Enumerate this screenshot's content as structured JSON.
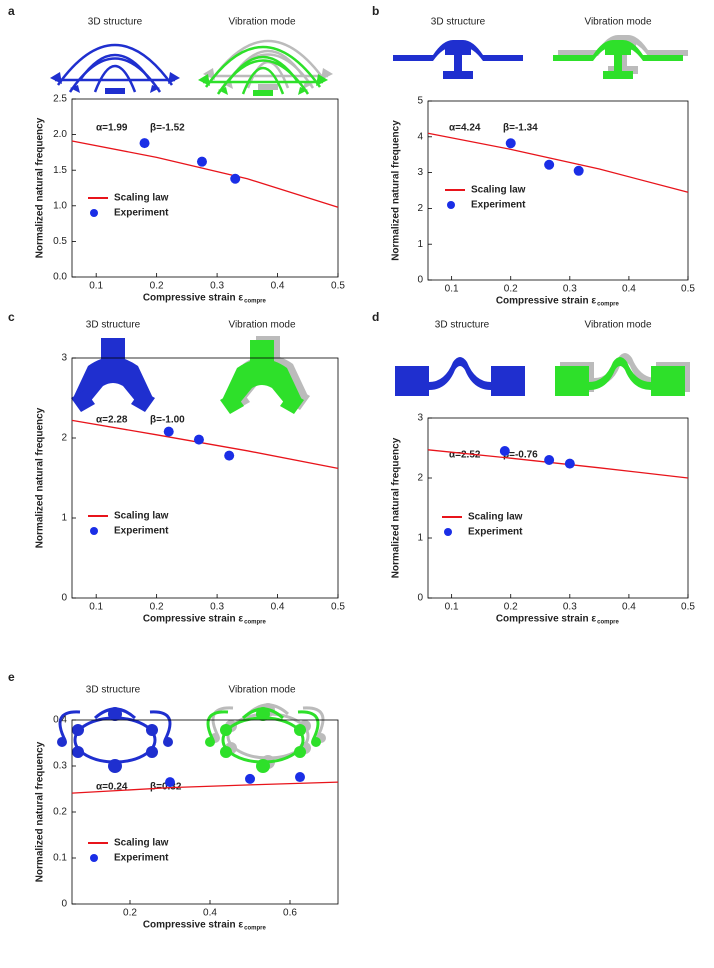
{
  "chart_data": [
    {
      "type": "line",
      "label": "a",
      "headers": [
        "3D structure",
        "Vibration mode"
      ],
      "annotations": [
        "α=1.99",
        "β=-1.52"
      ],
      "xlabel": "Compressive strain ε",
      "xlabel_subscript": "compre",
      "ylabel": "Normalized natural frequency",
      "xlim": [
        0.06,
        0.5
      ],
      "xticks": [
        0.1,
        0.2,
        0.3,
        0.4,
        0.5
      ],
      "ylim": [
        0,
        2.5
      ],
      "yticks": [
        {
          "value": 0,
          "label": "0.0"
        },
        0.5,
        {
          "value": 1,
          "label": "1.0"
        },
        1.5,
        {
          "value": 2,
          "label": "2.0"
        },
        2.5
      ],
      "series": [
        {
          "name": "Scaling law",
          "type": "line",
          "color": "#e8141b",
          "x": [
            0.06,
            0.2,
            0.35,
            0.5
          ],
          "values": [
            1.91,
            1.68,
            1.38,
            0.98
          ]
        },
        {
          "name": "Experiment",
          "type": "scatter",
          "color": "#1a2ee6",
          "x": [
            0.18,
            0.275,
            0.33
          ],
          "values": [
            1.88,
            1.62,
            1.38
          ]
        }
      ]
    },
    {
      "type": "line",
      "label": "b",
      "headers": [
        "3D structure",
        "Vibration mode"
      ],
      "annotations": [
        "α=4.24",
        "β=-1.34"
      ],
      "xlabel": "Compressive strain ε",
      "xlabel_subscript": "compre",
      "ylabel": "Normalized natural frequency",
      "xlim": [
        0.06,
        0.5
      ],
      "xticks": [
        0.1,
        0.2,
        0.3,
        0.4,
        0.5
      ],
      "ylim": [
        0,
        5
      ],
      "yticks": [
        0,
        1,
        2,
        3,
        4,
        5
      ],
      "series": [
        {
          "name": "Scaling law",
          "type": "line",
          "color": "#e8141b",
          "x": [
            0.06,
            0.2,
            0.35,
            0.5
          ],
          "values": [
            4.1,
            3.65,
            3.1,
            2.45
          ]
        },
        {
          "name": "Experiment",
          "type": "scatter",
          "color": "#1a2ee6",
          "x": [
            0.2,
            0.265,
            0.315
          ],
          "values": [
            3.82,
            3.22,
            3.05
          ]
        }
      ]
    },
    {
      "type": "line",
      "label": "c",
      "headers": [
        "3D structure",
        "Vibration mode"
      ],
      "annotations": [
        "α=2.28",
        "β=-1.00"
      ],
      "xlabel": "Compressive strain ε",
      "xlabel_subscript": "compre",
      "ylabel": "Normalized natural frequency",
      "xlim": [
        0.06,
        0.5
      ],
      "xticks": [
        0.1,
        0.2,
        0.3,
        0.4,
        0.5
      ],
      "ylim": [
        0,
        3
      ],
      "yticks": [
        0,
        1,
        2,
        3
      ],
      "series": [
        {
          "name": "Scaling law",
          "type": "line",
          "color": "#e8141b",
          "x": [
            0.06,
            0.2,
            0.35,
            0.5
          ],
          "values": [
            2.22,
            2.04,
            1.84,
            1.62
          ]
        },
        {
          "name": "Experiment",
          "type": "scatter",
          "color": "#1a2ee6",
          "x": [
            0.22,
            0.27,
            0.32
          ],
          "values": [
            2.08,
            1.98,
            1.78
          ]
        }
      ]
    },
    {
      "type": "line",
      "label": "d",
      "headers": [
        "3D structure",
        "Vibration mode"
      ],
      "annotations": [
        "α=2.52",
        "β=-0.76"
      ],
      "xlabel": "Compressive strain ε",
      "xlabel_subscript": "compre",
      "ylabel": "Normalized natural frequency",
      "xlim": [
        0.06,
        0.5
      ],
      "xticks": [
        0.1,
        0.2,
        0.3,
        0.4,
        0.5
      ],
      "ylim": [
        0,
        3
      ],
      "yticks": [
        0,
        1,
        2,
        3
      ],
      "series": [
        {
          "name": "Scaling law",
          "type": "line",
          "color": "#e8141b",
          "x": [
            0.06,
            0.2,
            0.35,
            0.5
          ],
          "values": [
            2.47,
            2.33,
            2.17,
            2.0
          ]
        },
        {
          "name": "Experiment",
          "type": "scatter",
          "color": "#1a2ee6",
          "x": [
            0.19,
            0.265,
            0.3
          ],
          "values": [
            2.45,
            2.3,
            2.24
          ]
        }
      ]
    },
    {
      "type": "line",
      "label": "e",
      "headers": [
        "3D structure",
        "Vibration mode"
      ],
      "annotations": [
        "α=0.24",
        "β=0.32"
      ],
      "xlabel": "Compressive strain ε",
      "xlabel_subscript": "compre",
      "ylabel": "Normalized natural frequency",
      "xlim": [
        0.055,
        0.72
      ],
      "xticks": [
        0.2,
        0.4,
        0.6
      ],
      "ylim": [
        0,
        0.4
      ],
      "yticks": [
        0,
        0.1,
        0.2,
        0.3,
        0.4
      ],
      "series": [
        {
          "name": "Scaling law",
          "type": "line",
          "color": "#e8141b",
          "x": [
            0.055,
            0.3,
            0.5,
            0.72
          ],
          "values": [
            0.241,
            0.253,
            0.259,
            0.265
          ]
        },
        {
          "name": "Experiment",
          "type": "scatter",
          "color": "#1a2ee6",
          "x": [
            0.3,
            0.5,
            0.625
          ],
          "values": [
            0.265,
            0.272,
            0.276
          ]
        }
      ]
    }
  ]
}
